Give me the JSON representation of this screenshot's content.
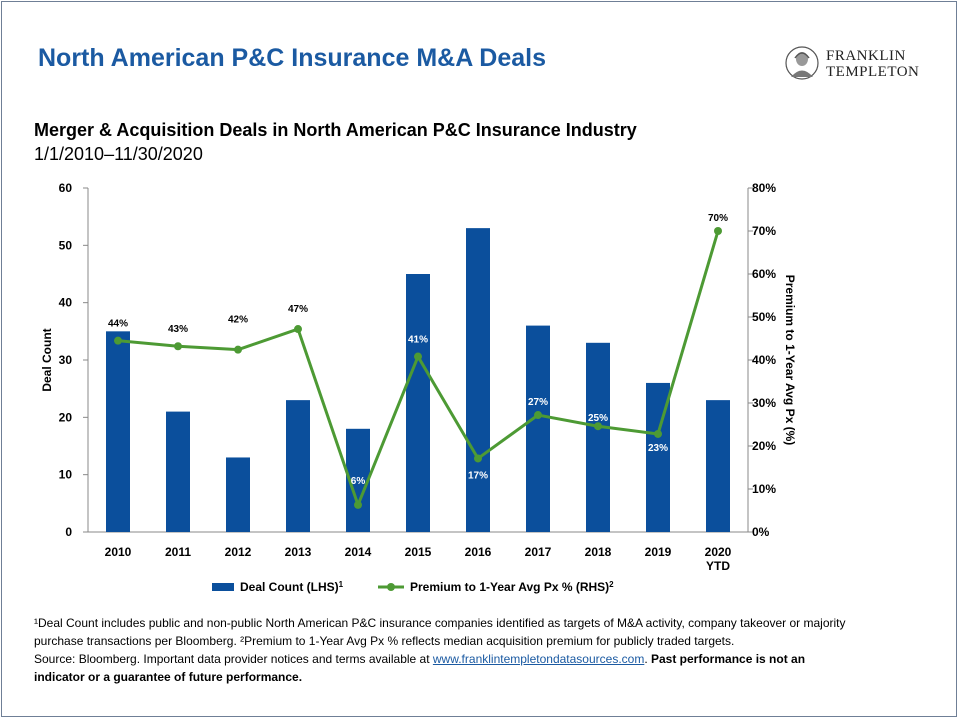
{
  "header": {
    "title": "North American P&C Insurance M&A Deals",
    "logo_line1": "FRANKLIN",
    "logo_line2": "TEMPLETON"
  },
  "chart_data": {
    "type": "bar",
    "title": "Merger & Acquisition Deals in North American P&C Insurance Industry",
    "subtitle": "1/1/2010–11/30/2020",
    "categories": [
      "2010",
      "2011",
      "2012",
      "2013",
      "2014",
      "2015",
      "2016",
      "2017",
      "2018",
      "2019",
      "2020 YTD"
    ],
    "series": [
      {
        "name": "Deal Count (LHS)",
        "name_sup": "1",
        "type": "bar",
        "axis": "left",
        "color": "#0b4f9c",
        "values": [
          35,
          21,
          13,
          23,
          18,
          45,
          53,
          36,
          33,
          26,
          23
        ]
      },
      {
        "name": "Premium to 1-Year Avg Px % (RHS)",
        "name_sup": "2",
        "type": "line",
        "axis": "right",
        "color": "#4d9a34",
        "values": [
          44,
          43,
          42,
          47,
          6,
          41,
          17,
          27,
          25,
          23,
          70
        ],
        "plotted_values": [
          44.5,
          43.2,
          42.4,
          47.2,
          6.3,
          40.8,
          17.1,
          27.2,
          24.6,
          22.8,
          70.0
        ],
        "labels": [
          "44%",
          "43%",
          "42%",
          "47%",
          "6%",
          "41%",
          "17%",
          "27%",
          "25%",
          "23%",
          "70%"
        ]
      }
    ],
    "ylabel_left": "Deal Count",
    "ylabel_right": "Premium to 1-Year Avg Px (%)",
    "ylim_left": [
      0,
      60
    ],
    "yticks_left": [
      "0",
      "10",
      "20",
      "30",
      "40",
      "50",
      "60"
    ],
    "ylim_right": [
      0,
      80
    ],
    "yticks_right": [
      "0%",
      "10%",
      "20%",
      "30%",
      "40%",
      "50%",
      "60%",
      "70%",
      "80%"
    ],
    "grid": false,
    "legend_position": "bottom"
  },
  "footnotes": {
    "line1": "¹Deal Count includes public and non-public North American P&C insurance companies identified as targets of M&A activity, company takeover or majority",
    "line2": "purchase transactions per Bloomberg. ²Premium to 1-Year Avg Px % reflects median acquisition premium for publicly traded targets.",
    "source_prefix": "Source: Bloomberg. Important data provider notices and terms available at ",
    "source_link": "www.franklintempletondatasources.com",
    "source_suffix": ". ",
    "disclaimer1": "Past performance  is not an",
    "disclaimer2": "indicator or a guarantee of future performance."
  }
}
